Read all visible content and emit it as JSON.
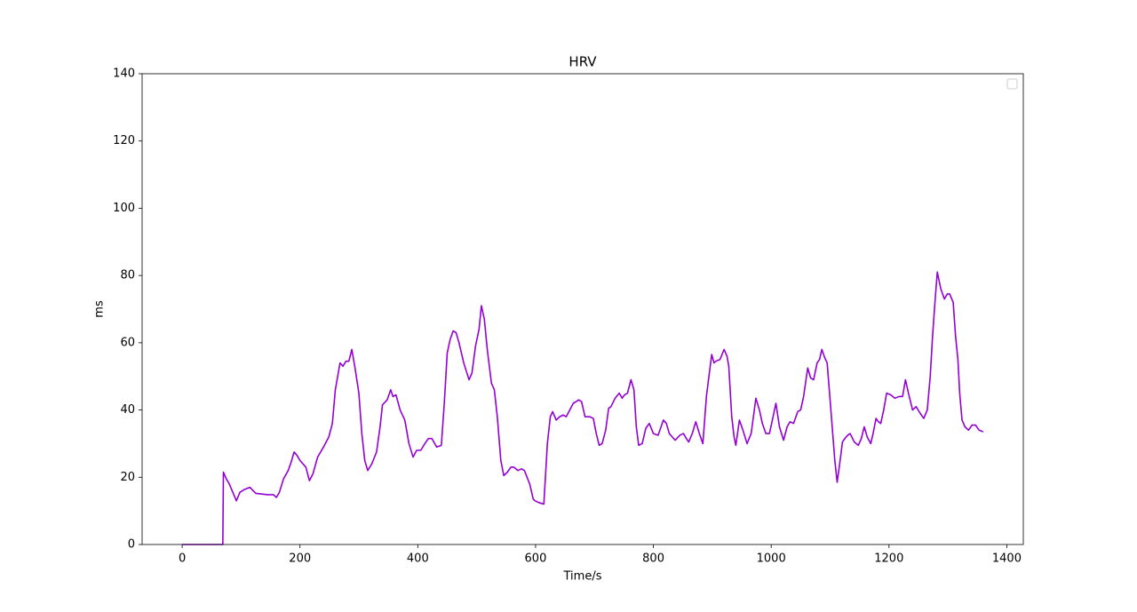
{
  "chart_data": {
    "type": "line",
    "title": "HRV",
    "x_label": "Time/s",
    "y_label": "ms",
    "xlim": [
      -68,
      1428
    ],
    "ylim": [
      0,
      140
    ],
    "xticks": [
      0,
      200,
      400,
      600,
      800,
      1000,
      1200,
      1400
    ],
    "yticks": [
      0,
      20,
      40,
      60,
      80,
      100,
      120,
      140
    ],
    "grid": false,
    "legend": "upper right",
    "x": [
      0,
      69,
      70,
      75,
      80,
      86,
      92,
      98,
      105,
      115,
      125,
      135,
      145,
      155,
      160,
      165,
      172,
      180,
      185,
      190,
      195,
      200,
      210,
      216,
      222,
      230,
      240,
      249,
      255,
      260,
      268,
      273,
      278,
      283,
      288,
      293,
      300,
      305,
      310,
      315,
      322,
      330,
      336,
      340,
      348,
      354,
      358,
      363,
      370,
      378,
      385,
      392,
      398,
      405,
      412,
      418,
      424,
      432,
      440,
      445,
      450,
      455,
      460,
      465,
      470,
      478,
      487,
      492,
      498,
      504,
      508,
      513,
      518,
      525,
      530,
      535,
      541,
      546,
      552,
      558,
      563,
      570,
      576,
      581,
      590,
      596,
      599,
      605,
      614,
      620,
      625,
      629,
      635,
      641,
      647,
      652,
      658,
      664,
      669,
      673,
      678,
      684,
      692,
      698,
      703,
      708,
      713,
      719,
      724,
      728,
      735,
      742,
      747,
      751,
      756,
      762,
      767,
      771,
      775,
      781,
      787,
      793,
      800,
      808,
      813,
      817,
      822,
      827,
      832,
      837,
      845,
      851,
      856,
      860,
      866,
      872,
      878,
      884,
      890,
      895,
      899,
      903,
      906,
      913,
      920,
      925,
      928,
      933,
      937,
      940,
      946,
      952,
      959,
      966,
      974,
      980,
      985,
      991,
      997,
      1002,
      1008,
      1014,
      1021,
      1027,
      1032,
      1038,
      1045,
      1050,
      1055,
      1062,
      1067,
      1072,
      1078,
      1082,
      1086,
      1091,
      1095,
      1100,
      1104,
      1108,
      1112,
      1117,
      1121,
      1125,
      1130,
      1134,
      1141,
      1148,
      1153,
      1158,
      1163,
      1169,
      1173,
      1178,
      1182,
      1186,
      1191,
      1196,
      1203,
      1210,
      1217,
      1223,
      1228,
      1233,
      1240,
      1246,
      1253,
      1259,
      1265,
      1270,
      1274,
      1278,
      1282,
      1288,
      1294,
      1299,
      1303,
      1309,
      1313,
      1317,
      1320,
      1324,
      1329,
      1335,
      1341,
      1347,
      1353,
      1360
    ],
    "series": [
      {
        "color": "#9400d3",
        "values": [
          0,
          0,
          21.5,
          19.5,
          18,
          15.5,
          13,
          15.5,
          16.3,
          17,
          15.2,
          15,
          14.8,
          14.8,
          14,
          15.5,
          19.5,
          22,
          24.5,
          27.5,
          26.5,
          25,
          23,
          19,
          21,
          26,
          29,
          32,
          36,
          46,
          54,
          53,
          54.5,
          54.5,
          58,
          53,
          45,
          33,
          25,
          22,
          24,
          27.5,
          35,
          41.5,
          43,
          46,
          44,
          44.5,
          40,
          37,
          30,
          26,
          28,
          28,
          30,
          31.5,
          31.5,
          29,
          29.5,
          42,
          57,
          61,
          63.5,
          63,
          60,
          54,
          49,
          51,
          59,
          64,
          71,
          67,
          58,
          48,
          46,
          38,
          25,
          20.5,
          21.5,
          23,
          23,
          22,
          22.5,
          22,
          18,
          13.5,
          13,
          12.5,
          12,
          30,
          38,
          39.5,
          37,
          38,
          38.5,
          38,
          40,
          42,
          42.5,
          43,
          42.5,
          38,
          38,
          37.5,
          33,
          29.5,
          30,
          34,
          40.5,
          41,
          43.5,
          45,
          43.5,
          44.5,
          45,
          49,
          46,
          35,
          29.5,
          30,
          34.5,
          36,
          33,
          32.5,
          35,
          37,
          36,
          33,
          32,
          31,
          32.5,
          33,
          31.5,
          30.5,
          33,
          36.5,
          33,
          30,
          44,
          51,
          56.5,
          54,
          54.5,
          55,
          58,
          56,
          53,
          38,
          32,
          29.5,
          37,
          34,
          30,
          33,
          43.5,
          40,
          36,
          33,
          33,
          37,
          42,
          35,
          31,
          35,
          36.5,
          36,
          39.5,
          40,
          44,
          52.5,
          49.5,
          49,
          54,
          55,
          58,
          55.5,
          54,
          43,
          34,
          25,
          18.5,
          25,
          30.5,
          31.5,
          32.5,
          33,
          30.5,
          29.5,
          31.5,
          35,
          32,
          30,
          33,
          37.5,
          36.5,
          36,
          40,
          45,
          44.5,
          43.5,
          44,
          44,
          49,
          45,
          40,
          41,
          39,
          37.5,
          40,
          50,
          62,
          72,
          81,
          76,
          73,
          74.5,
          74.5,
          72,
          62,
          55,
          45,
          37,
          35,
          34,
          35.5,
          35.5,
          34,
          33.5
        ]
      }
    ]
  }
}
